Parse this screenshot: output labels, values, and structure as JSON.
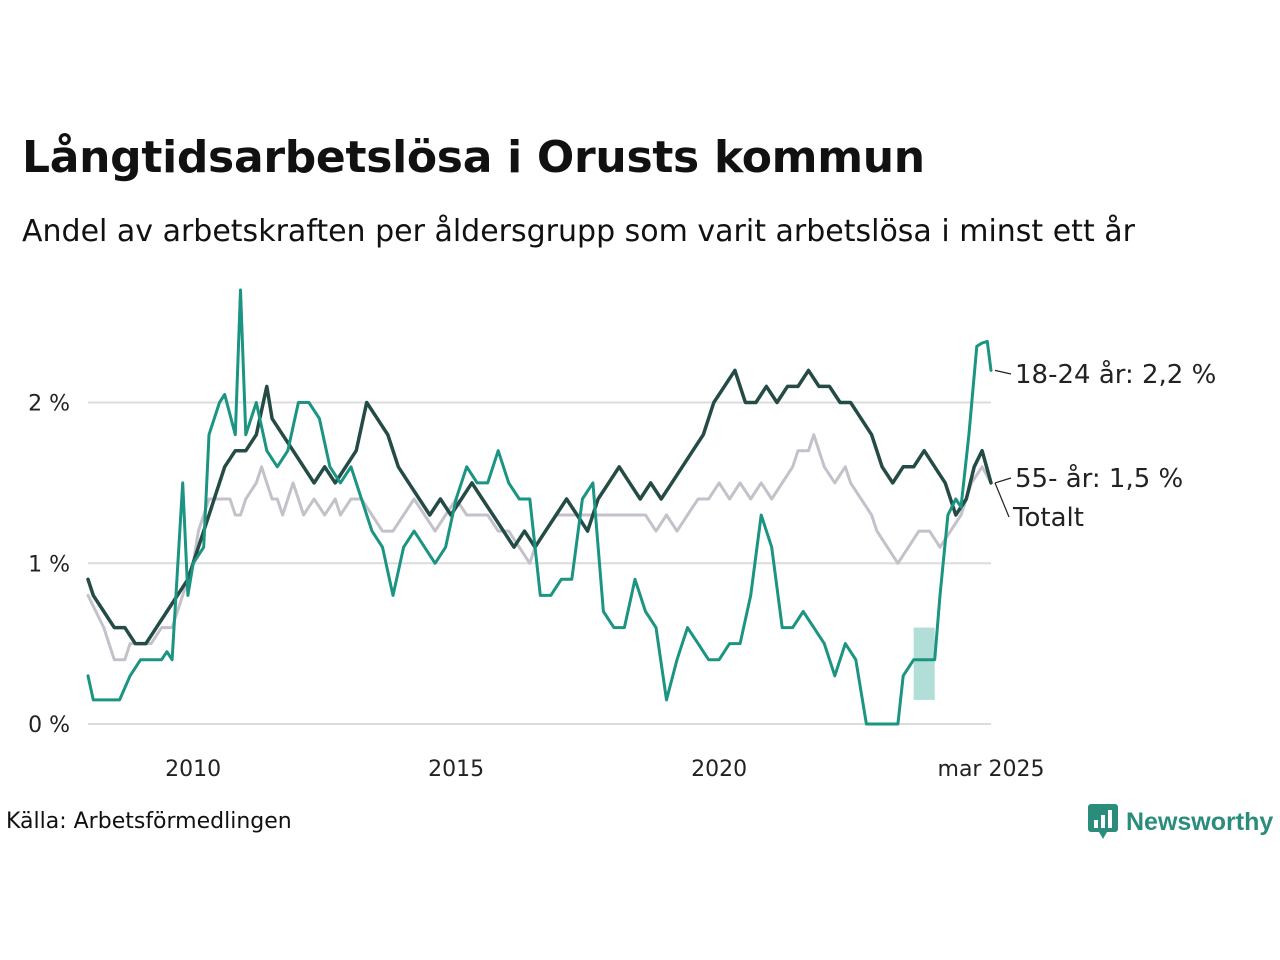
{
  "header": {
    "title": "Långtidsarbetslösa i Orusts kommun",
    "subtitle": "Andel av arbetskraften per åldersgrupp som varit arbetslösa i minst ett år"
  },
  "footer": {
    "source": "Källa: Arbetsförmedlingen",
    "logo_text": "Newsworthy"
  },
  "colors": {
    "young": "#1b9481",
    "old": "#244b45",
    "total": "#c4c1cb",
    "band": "#a8dad3",
    "grid": "#dcdcdc",
    "brand": "#2a8d7b"
  },
  "chart_data": {
    "type": "line",
    "title": "Långtidsarbetslösa i Orusts kommun",
    "subtitle": "Andel av arbetskraften per åldersgrupp som varit arbetslösa i minst ett år",
    "xlim": [
      2008.0,
      2025.17
    ],
    "ylim": [
      0,
      2.7
    ],
    "x_ticks": [
      {
        "value": 2010,
        "label": "2010"
      },
      {
        "value": 2015,
        "label": "2015"
      },
      {
        "value": 2020,
        "label": "2020"
      },
      {
        "value": 2025.17,
        "label": "mar 2025"
      }
    ],
    "y_ticks": [
      {
        "value": 0,
        "label": "0 %"
      },
      {
        "value": 1,
        "label": "1 %"
      },
      {
        "value": 2,
        "label": "2 %"
      }
    ],
    "grid": "horizontal",
    "series": [
      {
        "name": "Totalt",
        "label": "Totalt",
        "points": [
          [
            2008.0,
            0.8
          ],
          [
            2008.3,
            0.6
          ],
          [
            2008.4,
            0.5
          ],
          [
            2008.5,
            0.4
          ],
          [
            2008.7,
            0.4
          ],
          [
            2008.8,
            0.5
          ],
          [
            2009.0,
            0.5
          ],
          [
            2009.2,
            0.5
          ],
          [
            2009.4,
            0.6
          ],
          [
            2009.6,
            0.6
          ],
          [
            2009.8,
            0.8
          ],
          [
            2010.0,
            1.0
          ],
          [
            2010.1,
            1.2
          ],
          [
            2010.2,
            1.3
          ],
          [
            2010.3,
            1.4
          ],
          [
            2010.5,
            1.4
          ],
          [
            2010.7,
            1.4
          ],
          [
            2010.8,
            1.3
          ],
          [
            2010.9,
            1.3
          ],
          [
            2011.0,
            1.4
          ],
          [
            2011.2,
            1.5
          ],
          [
            2011.3,
            1.6
          ],
          [
            2011.4,
            1.5
          ],
          [
            2011.5,
            1.4
          ],
          [
            2011.6,
            1.4
          ],
          [
            2011.7,
            1.3
          ],
          [
            2011.8,
            1.4
          ],
          [
            2011.9,
            1.5
          ],
          [
            2012.0,
            1.4
          ],
          [
            2012.1,
            1.3
          ],
          [
            2012.3,
            1.4
          ],
          [
            2012.5,
            1.3
          ],
          [
            2012.7,
            1.4
          ],
          [
            2012.8,
            1.3
          ],
          [
            2013.0,
            1.4
          ],
          [
            2013.2,
            1.4
          ],
          [
            2013.4,
            1.3
          ],
          [
            2013.6,
            1.2
          ],
          [
            2013.8,
            1.2
          ],
          [
            2014.0,
            1.3
          ],
          [
            2014.2,
            1.4
          ],
          [
            2014.4,
            1.3
          ],
          [
            2014.6,
            1.2
          ],
          [
            2014.8,
            1.3
          ],
          [
            2015.0,
            1.4
          ],
          [
            2015.2,
            1.3
          ],
          [
            2015.4,
            1.3
          ],
          [
            2015.6,
            1.3
          ],
          [
            2015.8,
            1.2
          ],
          [
            2016.0,
            1.2
          ],
          [
            2016.2,
            1.1
          ],
          [
            2016.4,
            1.0
          ],
          [
            2016.5,
            1.1
          ],
          [
            2016.7,
            1.2
          ],
          [
            2016.9,
            1.3
          ],
          [
            2017.1,
            1.3
          ],
          [
            2017.3,
            1.3
          ],
          [
            2017.5,
            1.3
          ],
          [
            2017.7,
            1.3
          ],
          [
            2018.0,
            1.3
          ],
          [
            2018.3,
            1.3
          ],
          [
            2018.6,
            1.3
          ],
          [
            2018.8,
            1.2
          ],
          [
            2019.0,
            1.3
          ],
          [
            2019.2,
            1.2
          ],
          [
            2019.4,
            1.3
          ],
          [
            2019.6,
            1.4
          ],
          [
            2019.8,
            1.4
          ],
          [
            2020.0,
            1.5
          ],
          [
            2020.2,
            1.4
          ],
          [
            2020.4,
            1.5
          ],
          [
            2020.6,
            1.4
          ],
          [
            2020.8,
            1.5
          ],
          [
            2021.0,
            1.4
          ],
          [
            2021.2,
            1.5
          ],
          [
            2021.4,
            1.6
          ],
          [
            2021.5,
            1.7
          ],
          [
            2021.7,
            1.7
          ],
          [
            2021.8,
            1.8
          ],
          [
            2021.9,
            1.7
          ],
          [
            2022.0,
            1.6
          ],
          [
            2022.2,
            1.5
          ],
          [
            2022.4,
            1.6
          ],
          [
            2022.5,
            1.5
          ],
          [
            2022.7,
            1.4
          ],
          [
            2022.9,
            1.3
          ],
          [
            2023.0,
            1.2
          ],
          [
            2023.2,
            1.1
          ],
          [
            2023.4,
            1.0
          ],
          [
            2023.6,
            1.1
          ],
          [
            2023.8,
            1.2
          ],
          [
            2024.0,
            1.2
          ],
          [
            2024.2,
            1.1
          ],
          [
            2024.4,
            1.2
          ],
          [
            2024.6,
            1.3
          ],
          [
            2024.8,
            1.5
          ],
          [
            2025.0,
            1.6
          ],
          [
            2025.17,
            1.5
          ]
        ]
      },
      {
        "name": "55- år",
        "label": "55- år: 1,5 %",
        "points": [
          [
            2008.0,
            0.9
          ],
          [
            2008.1,
            0.8
          ],
          [
            2008.3,
            0.7
          ],
          [
            2008.5,
            0.6
          ],
          [
            2008.7,
            0.6
          ],
          [
            2008.9,
            0.5
          ],
          [
            2009.1,
            0.5
          ],
          [
            2009.3,
            0.6
          ],
          [
            2009.5,
            0.7
          ],
          [
            2009.7,
            0.8
          ],
          [
            2009.9,
            0.9
          ],
          [
            2010.1,
            1.1
          ],
          [
            2010.3,
            1.3
          ],
          [
            2010.4,
            1.4
          ],
          [
            2010.6,
            1.6
          ],
          [
            2010.8,
            1.7
          ],
          [
            2011.0,
            1.7
          ],
          [
            2011.2,
            1.8
          ],
          [
            2011.4,
            2.1
          ],
          [
            2011.5,
            1.9
          ],
          [
            2011.7,
            1.8
          ],
          [
            2011.9,
            1.7
          ],
          [
            2012.1,
            1.6
          ],
          [
            2012.3,
            1.5
          ],
          [
            2012.5,
            1.6
          ],
          [
            2012.7,
            1.5
          ],
          [
            2012.9,
            1.6
          ],
          [
            2013.1,
            1.7
          ],
          [
            2013.3,
            2.0
          ],
          [
            2013.5,
            1.9
          ],
          [
            2013.7,
            1.8
          ],
          [
            2013.9,
            1.6
          ],
          [
            2014.1,
            1.5
          ],
          [
            2014.3,
            1.4
          ],
          [
            2014.5,
            1.3
          ],
          [
            2014.7,
            1.4
          ],
          [
            2014.9,
            1.3
          ],
          [
            2015.1,
            1.4
          ],
          [
            2015.3,
            1.5
          ],
          [
            2015.5,
            1.4
          ],
          [
            2015.7,
            1.3
          ],
          [
            2015.9,
            1.2
          ],
          [
            2016.1,
            1.1
          ],
          [
            2016.3,
            1.2
          ],
          [
            2016.5,
            1.1
          ],
          [
            2016.7,
            1.2
          ],
          [
            2016.9,
            1.3
          ],
          [
            2017.1,
            1.4
          ],
          [
            2017.3,
            1.3
          ],
          [
            2017.5,
            1.2
          ],
          [
            2017.7,
            1.4
          ],
          [
            2017.9,
            1.5
          ],
          [
            2018.1,
            1.6
          ],
          [
            2018.3,
            1.5
          ],
          [
            2018.5,
            1.4
          ],
          [
            2018.7,
            1.5
          ],
          [
            2018.9,
            1.4
          ],
          [
            2019.1,
            1.5
          ],
          [
            2019.3,
            1.6
          ],
          [
            2019.5,
            1.7
          ],
          [
            2019.7,
            1.8
          ],
          [
            2019.9,
            2.0
          ],
          [
            2020.1,
            2.1
          ],
          [
            2020.3,
            2.2
          ],
          [
            2020.5,
            2.0
          ],
          [
            2020.7,
            2.0
          ],
          [
            2020.9,
            2.1
          ],
          [
            2021.1,
            2.0
          ],
          [
            2021.3,
            2.1
          ],
          [
            2021.5,
            2.1
          ],
          [
            2021.7,
            2.2
          ],
          [
            2021.9,
            2.1
          ],
          [
            2022.1,
            2.1
          ],
          [
            2022.3,
            2.0
          ],
          [
            2022.5,
            2.0
          ],
          [
            2022.7,
            1.9
          ],
          [
            2022.9,
            1.8
          ],
          [
            2023.1,
            1.6
          ],
          [
            2023.3,
            1.5
          ],
          [
            2023.5,
            1.6
          ],
          [
            2023.7,
            1.6
          ],
          [
            2023.9,
            1.7
          ],
          [
            2024.1,
            1.6
          ],
          [
            2024.3,
            1.5
          ],
          [
            2024.5,
            1.3
          ],
          [
            2024.7,
            1.4
          ],
          [
            2024.85,
            1.6
          ],
          [
            2025.0,
            1.7
          ],
          [
            2025.17,
            1.5
          ]
        ]
      },
      {
        "name": "18-24 år",
        "label": "18-24 år: 2,2 %",
        "points": [
          [
            2008.0,
            0.3
          ],
          [
            2008.1,
            0.15
          ],
          [
            2008.4,
            0.15
          ],
          [
            2008.6,
            0.15
          ],
          [
            2008.8,
            0.3
          ],
          [
            2009.0,
            0.4
          ],
          [
            2009.2,
            0.4
          ],
          [
            2009.4,
            0.4
          ],
          [
            2009.5,
            0.45
          ],
          [
            2009.6,
            0.4
          ],
          [
            2009.8,
            1.5
          ],
          [
            2009.9,
            0.8
          ],
          [
            2010.0,
            1.0
          ],
          [
            2010.2,
            1.1
          ],
          [
            2010.3,
            1.8
          ],
          [
            2010.5,
            2.0
          ],
          [
            2010.6,
            2.05
          ],
          [
            2010.8,
            1.8
          ],
          [
            2010.9,
            2.7
          ],
          [
            2011.0,
            1.8
          ],
          [
            2011.2,
            2.0
          ],
          [
            2011.4,
            1.7
          ],
          [
            2011.6,
            1.6
          ],
          [
            2011.8,
            1.7
          ],
          [
            2012.0,
            2.0
          ],
          [
            2012.2,
            2.0
          ],
          [
            2012.4,
            1.9
          ],
          [
            2012.6,
            1.6
          ],
          [
            2012.8,
            1.5
          ],
          [
            2013.0,
            1.6
          ],
          [
            2013.2,
            1.4
          ],
          [
            2013.4,
            1.2
          ],
          [
            2013.6,
            1.1
          ],
          [
            2013.8,
            0.8
          ],
          [
            2014.0,
            1.1
          ],
          [
            2014.2,
            1.2
          ],
          [
            2014.4,
            1.1
          ],
          [
            2014.6,
            1.0
          ],
          [
            2014.8,
            1.1
          ],
          [
            2015.0,
            1.4
          ],
          [
            2015.2,
            1.6
          ],
          [
            2015.4,
            1.5
          ],
          [
            2015.6,
            1.5
          ],
          [
            2015.8,
            1.7
          ],
          [
            2016.0,
            1.5
          ],
          [
            2016.2,
            1.4
          ],
          [
            2016.4,
            1.4
          ],
          [
            2016.6,
            0.8
          ],
          [
            2016.8,
            0.8
          ],
          [
            2017.0,
            0.9
          ],
          [
            2017.2,
            0.9
          ],
          [
            2017.4,
            1.4
          ],
          [
            2017.6,
            1.5
          ],
          [
            2017.8,
            0.7
          ],
          [
            2018.0,
            0.6
          ],
          [
            2018.2,
            0.6
          ],
          [
            2018.4,
            0.9
          ],
          [
            2018.6,
            0.7
          ],
          [
            2018.8,
            0.6
          ],
          [
            2019.0,
            0.15
          ],
          [
            2019.2,
            0.4
          ],
          [
            2019.4,
            0.6
          ],
          [
            2019.6,
            0.5
          ],
          [
            2019.8,
            0.4
          ],
          [
            2020.0,
            0.4
          ],
          [
            2020.2,
            0.5
          ],
          [
            2020.4,
            0.5
          ],
          [
            2020.6,
            0.8
          ],
          [
            2020.8,
            1.3
          ],
          [
            2021.0,
            1.1
          ],
          [
            2021.2,
            0.6
          ],
          [
            2021.4,
            0.6
          ],
          [
            2021.6,
            0.7
          ],
          [
            2021.8,
            0.6
          ],
          [
            2022.0,
            0.5
          ],
          [
            2022.2,
            0.3
          ],
          [
            2022.4,
            0.5
          ],
          [
            2022.6,
            0.4
          ],
          [
            2022.8,
            0.0
          ],
          [
            2023.0,
            0.0
          ],
          [
            2023.4,
            0.0
          ],
          [
            2023.5,
            0.3
          ],
          [
            2023.7,
            0.4
          ],
          [
            2024.0,
            0.4
          ],
          [
            2024.1,
            0.4
          ],
          [
            2024.2,
            0.8
          ],
          [
            2024.35,
            1.3
          ],
          [
            2024.5,
            1.4
          ],
          [
            2024.6,
            1.35
          ],
          [
            2024.75,
            1.8
          ],
          [
            2024.9,
            2.35
          ],
          [
            2025.0,
            2.37
          ],
          [
            2025.1,
            2.38
          ],
          [
            2025.17,
            2.2
          ]
        ]
      }
    ],
    "band": {
      "series": "18-24 år",
      "x0": 2023.7,
      "x1": 2024.1,
      "y_low": 0.15,
      "y_high": 0.6
    }
  }
}
